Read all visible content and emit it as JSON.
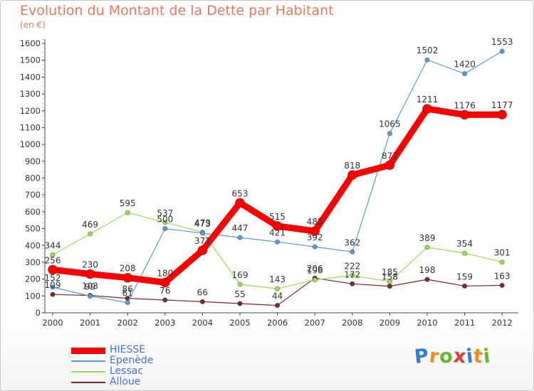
{
  "title": "Evolution du Montant de la Dette par Habitant",
  "subtitle": "(en €)",
  "brand": {
    "letters": [
      "P",
      "r",
      "o",
      "x",
      "i",
      "t",
      "i"
    ],
    "colors": [
      "#2e7fd6",
      "#f08a1c",
      "#69b42b",
      "#e03c31",
      "#2e7fd6",
      "#f08a1c",
      "#69b42b"
    ]
  },
  "chart_data": {
    "type": "line",
    "title": "Evolution du Montant de la Dette par Habitant",
    "subtitle": "(en €)",
    "x": [
      "2000",
      "2001",
      "2002",
      "2003",
      "2004",
      "2005",
      "2006",
      "2007",
      "2008",
      "2009",
      "2010",
      "2011",
      "2012"
    ],
    "ylim": [
      0,
      1600
    ],
    "yticks": [
      0,
      100,
      200,
      300,
      400,
      500,
      600,
      700,
      800,
      900,
      1000,
      1100,
      1200,
      1300,
      1400,
      1500,
      1600
    ],
    "grid": false,
    "legend_position": "bottom-left",
    "series": [
      {
        "name": "Alloue",
        "color": "#7a2a2a",
        "values": [
          109,
          103,
          86,
          76,
          66,
          55,
          44,
          206,
          172,
          158,
          198,
          159,
          163
        ]
      },
      {
        "name": "Lessac",
        "color": "#99dd55",
        "values": [
          344,
          469,
          595,
          537,
          479,
          169,
          143,
          196,
          222,
          185,
          389,
          354,
          301
        ]
      },
      {
        "name": "Epenède",
        "color": "#5b9bd5",
        "values": [
          152,
          99,
          61,
          500,
          473,
          447,
          421,
          392,
          362,
          1065,
          1502,
          1420,
          1553
        ]
      },
      {
        "name": "HIESSE",
        "color": "#ff0000",
        "values": [
          256,
          230,
          208,
          180,
          371,
          653,
          515,
          485,
          818,
          877,
          1211,
          1176,
          1177
        ]
      }
    ],
    "legend": [
      "HIESSE",
      "Epenède",
      "Lessac",
      "Alloue"
    ]
  }
}
